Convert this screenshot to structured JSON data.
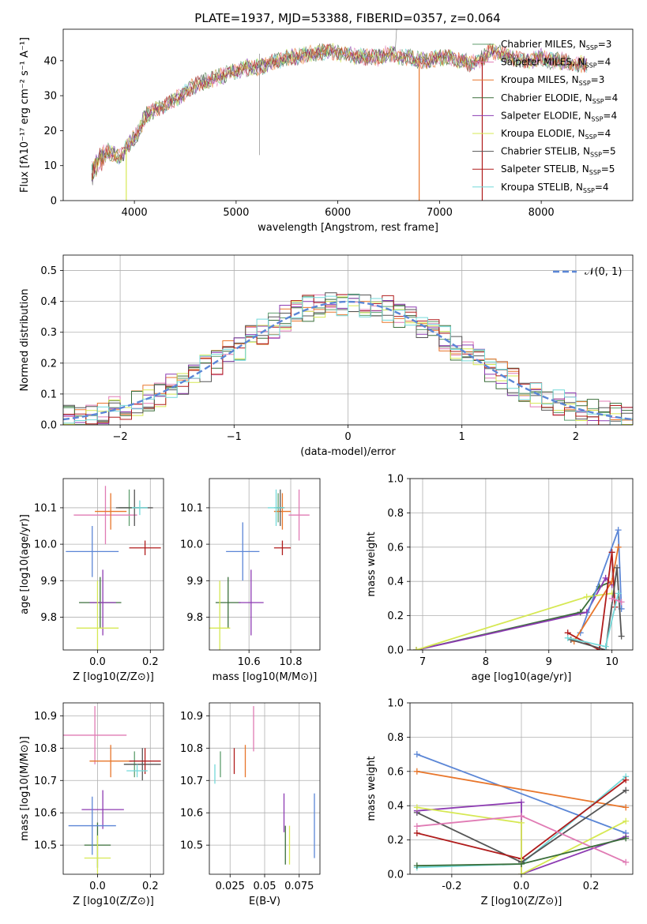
{
  "figure": {
    "title": "PLATE=1937, MJD=53388, FIBERID=0357, z=0.064"
  },
  "series_styles": [
    {
      "key": "cm",
      "color": "#5f9e6e"
    },
    {
      "key": "sm",
      "color": "#e07bb4"
    },
    {
      "key": "km",
      "color": "#e8762b"
    },
    {
      "key": "ce",
      "color": "#3a6e3a"
    },
    {
      "key": "se",
      "color": "#8d3bb2"
    },
    {
      "key": "ke",
      "color": "#d6e853"
    },
    {
      "key": "cs",
      "color": "#555555"
    },
    {
      "key": "ss",
      "color": "#b01c1c"
    },
    {
      "key": "ks",
      "color": "#74d9d9"
    }
  ],
  "chart_data": [
    {
      "id": "spectrum",
      "type": "line",
      "xlabel": "wavelength [Angstrom, rest frame]",
      "ylabel": "Flux [fλ10⁻¹⁷ erg cm⁻² s⁻¹ A⁻¹]",
      "xlim": [
        3300,
        8900
      ],
      "ylim": [
        0,
        49
      ],
      "xticks": [
        4000,
        5000,
        6000,
        7000,
        8000
      ],
      "yticks": [
        0,
        10,
        20,
        30,
        40
      ],
      "grid": false,
      "legend_position": "right",
      "legend": [
        "Chabrier MILES, N_SSP=3",
        "Salpeter MILES, N_SSP=4",
        "Kroupa MILES, N_SSP=3",
        "Chabrier ELODIE, N_SSP=4",
        "Salpeter ELODIE, N_SSP=4",
        "Kroupa ELODIE, N_SSP=4",
        "Chabrier STELIB, N_SSP=5",
        "Salpeter STELIB, N_SSP=5",
        "Kroupa STELIB, N_SSP=4"
      ],
      "x": [
        3580,
        3650,
        3750,
        3850,
        3950,
        4050,
        4100,
        4200,
        4300,
        4400,
        4500,
        4600,
        4700,
        4800,
        4900,
        5000,
        5100,
        5200,
        5300,
        5400,
        5500,
        5600,
        5700,
        5800,
        5900,
        6000,
        6100,
        6200,
        6300,
        6400,
        6500,
        6600,
        6700,
        6800,
        6900,
        7000,
        7100,
        7200,
        7300,
        7400,
        7500,
        7600,
        7700,
        7800,
        7900,
        8000,
        8100,
        8200,
        8300,
        8400,
        8500,
        8600,
        8700
      ],
      "y": [
        8,
        12,
        14,
        12,
        16,
        20,
        24,
        26,
        27,
        29,
        31,
        33,
        34,
        35,
        36,
        37,
        38,
        38,
        39,
        40,
        41,
        41,
        42,
        42,
        43,
        42,
        42,
        41,
        41,
        41,
        42,
        41,
        41,
        40,
        40,
        41,
        41,
        40,
        39,
        40,
        43,
        42,
        41,
        40,
        40,
        41,
        40,
        40,
        39,
        39,
        38,
        37,
        36
      ],
      "dropouts": [
        {
          "series": "ke",
          "x": 3920,
          "y_to": 0
        },
        {
          "series": "km",
          "x": 6800,
          "y_to": 0
        },
        {
          "series": "ss",
          "x": 7420,
          "y_to": 0
        }
      ]
    },
    {
      "id": "residuals",
      "type": "histogram",
      "xlabel": "(data-model)/error",
      "ylabel": "Normed distribution",
      "xlim": [
        -2.5,
        2.5
      ],
      "ylim": [
        0,
        0.55
      ],
      "xticks": [
        -2,
        -1,
        0,
        1,
        2
      ],
      "yticks": [
        0.0,
        0.1,
        0.2,
        0.3,
        0.4,
        0.5
      ],
      "grid": true,
      "legend_position": "top-right",
      "legend": [
        "𝒩(0, 1)"
      ],
      "bin_width": 0.1,
      "reference_curve": "normal(0,1)"
    },
    {
      "id": "z_age",
      "type": "scatter",
      "xlabel": "Z [log10(Z/Z⊙)]",
      "ylabel": "age  [log10(age/yr)]",
      "xlim": [
        -0.13,
        0.25
      ],
      "ylim": [
        9.71,
        10.18
      ],
      "xticks": [
        0.0,
        0.2
      ],
      "yticks": [
        9.8,
        9.9,
        10.0,
        10.1
      ],
      "grid": true,
      "points": [
        {
          "series": "cm",
          "x": 0.12,
          "y": 10.1,
          "xerr": 0.04,
          "yerr": 0.05
        },
        {
          "series": "sm",
          "x": 0.03,
          "y": 10.08,
          "xerr": 0.12,
          "yerr": 0.08
        },
        {
          "series": "km",
          "x": 0.05,
          "y": 10.09,
          "xerr": 0.06,
          "yerr": 0.05
        },
        {
          "series": "ce",
          "x": 0.01,
          "y": 9.84,
          "xerr": 0.08,
          "yerr": 0.07
        },
        {
          "series": "se",
          "x": 0.02,
          "y": 9.84,
          "xerr": 0.05,
          "yerr": 0.09
        },
        {
          "series": "ke",
          "x": 0.0,
          "y": 9.77,
          "xerr": 0.08,
          "yerr": 0.13
        },
        {
          "series": "cs",
          "x": 0.14,
          "y": 10.1,
          "xerr": 0.07,
          "yerr": 0.05
        },
        {
          "series": "ss",
          "x": 0.18,
          "y": 9.99,
          "xerr": 0.06,
          "yerr": 0.02
        },
        {
          "series": "ks",
          "x": 0.16,
          "y": 10.1,
          "xerr": 0.03,
          "yerr": 0.02
        },
        {
          "series": "blue",
          "x": -0.02,
          "y": 9.98,
          "xerr": 0.1,
          "yerr": 0.07
        }
      ]
    },
    {
      "id": "mass_age",
      "type": "scatter",
      "xlabel": "mass [log10(M/M⊙)]",
      "ylabel": "",
      "xlim": [
        10.41,
        10.94
      ],
      "ylim": [
        9.71,
        10.18
      ],
      "xticks": [
        10.6,
        10.8
      ],
      "yticks": [
        9.8,
        9.9,
        10.0,
        10.1
      ],
      "grid": true,
      "points": [
        {
          "series": "cm",
          "x": 10.74,
          "y": 10.1,
          "xerr": 0.02,
          "yerr": 0.04
        },
        {
          "series": "sm",
          "x": 10.84,
          "y": 10.08,
          "xerr": 0.05,
          "yerr": 0.07
        },
        {
          "series": "km",
          "x": 10.76,
          "y": 10.09,
          "xerr": 0.04,
          "yerr": 0.05
        },
        {
          "series": "ce",
          "x": 10.5,
          "y": 9.84,
          "xerr": 0.06,
          "yerr": 0.07
        },
        {
          "series": "se",
          "x": 10.61,
          "y": 9.84,
          "xerr": 0.06,
          "yerr": 0.09
        },
        {
          "series": "ke",
          "x": 10.46,
          "y": 9.77,
          "xerr": 0.05,
          "yerr": 0.13
        },
        {
          "series": "cs",
          "x": 10.75,
          "y": 10.1,
          "xerr": 0.02,
          "yerr": 0.05
        },
        {
          "series": "ss",
          "x": 10.76,
          "y": 9.99,
          "xerr": 0.04,
          "yerr": 0.02
        },
        {
          "series": "ks",
          "x": 10.73,
          "y": 10.1,
          "xerr": 0.04,
          "yerr": 0.05
        },
        {
          "series": "blue",
          "x": 10.57,
          "y": 9.98,
          "xerr": 0.08,
          "yerr": 0.08
        }
      ]
    },
    {
      "id": "age_weight",
      "type": "line",
      "xlabel": "age  [log10(age/yr)]",
      "ylabel": "mass weight",
      "xlim": [
        6.8,
        10.33
      ],
      "ylim": [
        0.0,
        1.0
      ],
      "xticks": [
        7,
        8,
        9,
        10
      ],
      "yticks": [
        0.0,
        0.2,
        0.4,
        0.6,
        0.8,
        1.0
      ],
      "grid": true,
      "series": [
        {
          "series": "ce",
          "points": [
            [
              6.9,
              0.0
            ],
            [
              9.5,
              0.22
            ],
            [
              9.8,
              0.37
            ],
            [
              10.0,
              0.4
            ]
          ]
        },
        {
          "series": "se",
          "points": [
            [
              6.9,
              0.0
            ],
            [
              9.6,
              0.22
            ],
            [
              9.9,
              0.42
            ],
            [
              10.0,
              0.38
            ]
          ]
        },
        {
          "series": "ke",
          "points": [
            [
              6.9,
              0.0
            ],
            [
              9.6,
              0.31
            ],
            [
              10.0,
              0.33
            ]
          ]
        },
        {
          "series": "blue",
          "points": [
            [
              9.5,
              0.1
            ],
            [
              10.1,
              0.7
            ],
            [
              10.15,
              0.24
            ]
          ]
        },
        {
          "series": "km",
          "points": [
            [
              9.4,
              0.05
            ],
            [
              10.0,
              0.4
            ],
            [
              10.1,
              0.6
            ]
          ]
        },
        {
          "series": "ss",
          "points": [
            [
              9.3,
              0.1
            ],
            [
              9.8,
              0.0
            ],
            [
              10.0,
              0.57
            ],
            [
              10.05,
              0.25
            ]
          ]
        },
        {
          "series": "cs",
          "points": [
            [
              9.35,
              0.06
            ],
            [
              9.9,
              0.0
            ],
            [
              10.08,
              0.48
            ],
            [
              10.15,
              0.08
            ]
          ]
        },
        {
          "series": "ks",
          "points": [
            [
              9.3,
              0.07
            ],
            [
              9.9,
              0.02
            ],
            [
              10.1,
              0.33
            ]
          ]
        },
        {
          "series": "sm",
          "points": [
            [
              10.0,
              0.3
            ],
            [
              10.15,
              0.28
            ]
          ]
        }
      ]
    },
    {
      "id": "z_mass",
      "type": "scatter",
      "xlabel": "Z [log10(Z/Z⊙)]",
      "ylabel": "mass [log10(M/M⊙)]",
      "xlim": [
        -0.13,
        0.25
      ],
      "ylim": [
        10.41,
        10.94
      ],
      "xticks": [
        0.0,
        0.2
      ],
      "yticks": [
        10.5,
        10.6,
        10.7,
        10.8,
        10.9
      ],
      "grid": true,
      "points": [
        {
          "series": "cm",
          "x": 0.14,
          "y": 10.75,
          "xerr": 0.04,
          "yerr": 0.04
        },
        {
          "series": "sm",
          "x": -0.01,
          "y": 10.84,
          "xerr": 0.12,
          "yerr": 0.09
        },
        {
          "series": "km",
          "x": 0.05,
          "y": 10.76,
          "xerr": 0.08,
          "yerr": 0.05
        },
        {
          "series": "ce",
          "x": 0.0,
          "y": 10.5,
          "xerr": 0.05,
          "yerr": 0.07
        },
        {
          "series": "se",
          "x": 0.02,
          "y": 10.61,
          "xerr": 0.08,
          "yerr": 0.06
        },
        {
          "series": "ke",
          "x": 0.0,
          "y": 10.46,
          "xerr": 0.05,
          "yerr": 0.07
        },
        {
          "series": "cs",
          "x": 0.17,
          "y": 10.75,
          "xerr": 0.07,
          "yerr": 0.05
        },
        {
          "series": "ss",
          "x": 0.18,
          "y": 10.76,
          "xerr": 0.06,
          "yerr": 0.04
        },
        {
          "series": "ks",
          "x": 0.15,
          "y": 10.73,
          "xerr": 0.04,
          "yerr": 0.02
        },
        {
          "series": "blue",
          "x": -0.02,
          "y": 10.56,
          "xerr": 0.09,
          "yerr": 0.09
        }
      ]
    },
    {
      "id": "ebv_mass",
      "type": "scatter",
      "xlabel": "E(B-V)",
      "ylabel": "",
      "xlim": [
        0.01,
        0.09
      ],
      "ylim": [
        10.41,
        10.94
      ],
      "xticks": [
        0.025,
        0.05,
        0.075
      ],
      "yticks": [
        10.5,
        10.6,
        10.7,
        10.8,
        10.9
      ],
      "grid": true,
      "points": [
        {
          "series": "ks",
          "x": 0.014,
          "y": 10.72,
          "yerr": 0.03
        },
        {
          "series": "cm",
          "x": 0.018,
          "y": 10.75,
          "yerr": 0.04
        },
        {
          "series": "ss",
          "x": 0.028,
          "y": 10.76,
          "yerr": 0.04
        },
        {
          "series": "km",
          "x": 0.036,
          "y": 10.76,
          "yerr": 0.05
        },
        {
          "series": "sm",
          "x": 0.042,
          "y": 10.86,
          "yerr": 0.07
        },
        {
          "series": "se",
          "x": 0.064,
          "y": 10.6,
          "yerr": 0.06
        },
        {
          "series": "ce",
          "x": 0.065,
          "y": 10.5,
          "yerr": 0.06
        },
        {
          "series": "ke",
          "x": 0.068,
          "y": 10.5,
          "yerr": 0.06
        },
        {
          "series": "blue",
          "x": 0.086,
          "y": 10.56,
          "yerr": 0.1
        }
      ]
    },
    {
      "id": "z_weight",
      "type": "line",
      "xlabel": "Z [log10(Z/Z⊙)]",
      "ylabel": "mass weight",
      "xlim": [
        -0.32,
        0.32
      ],
      "ylim": [
        0.0,
        1.0
      ],
      "xticks": [
        -0.2,
        0.0,
        0.2
      ],
      "yticks": [
        0.0,
        0.2,
        0.4,
        0.6,
        0.8,
        1.0
      ],
      "grid": true,
      "series": [
        {
          "series": "blue",
          "points": [
            [
              -0.3,
              0.7
            ],
            [
              0.3,
              0.24
            ]
          ]
        },
        {
          "series": "km",
          "points": [
            [
              -0.3,
              0.6
            ],
            [
              0.3,
              0.39
            ]
          ]
        },
        {
          "series": "ks",
          "points": [
            [
              -0.3,
              0.04
            ],
            [
              0.0,
              0.06
            ],
            [
              0.3,
              0.57
            ]
          ]
        },
        {
          "series": "cs",
          "points": [
            [
              -0.3,
              0.36
            ],
            [
              0.0,
              0.07
            ],
            [
              0.3,
              0.49
            ]
          ]
        },
        {
          "series": "se",
          "points": [
            [
              -0.3,
              0.37
            ],
            [
              0.0,
              0.42
            ],
            [
              0.0,
              0.0
            ],
            [
              0.3,
              0.22
            ]
          ]
        },
        {
          "series": "ss",
          "points": [
            [
              -0.3,
              0.24
            ],
            [
              0.0,
              0.09
            ],
            [
              0.3,
              0.55
            ]
          ]
        },
        {
          "series": "ke",
          "points": [
            [
              -0.3,
              0.39
            ],
            [
              0.0,
              0.3
            ],
            [
              0.0,
              0.0
            ],
            [
              0.3,
              0.31
            ]
          ]
        },
        {
          "series": "sm",
          "points": [
            [
              -0.3,
              0.28
            ],
            [
              0.0,
              0.34
            ],
            [
              0.3,
              0.07
            ]
          ]
        },
        {
          "series": "ce",
          "points": [
            [
              -0.3,
              0.05
            ],
            [
              0.0,
              0.06
            ],
            [
              0.3,
              0.21
            ]
          ]
        }
      ]
    }
  ]
}
